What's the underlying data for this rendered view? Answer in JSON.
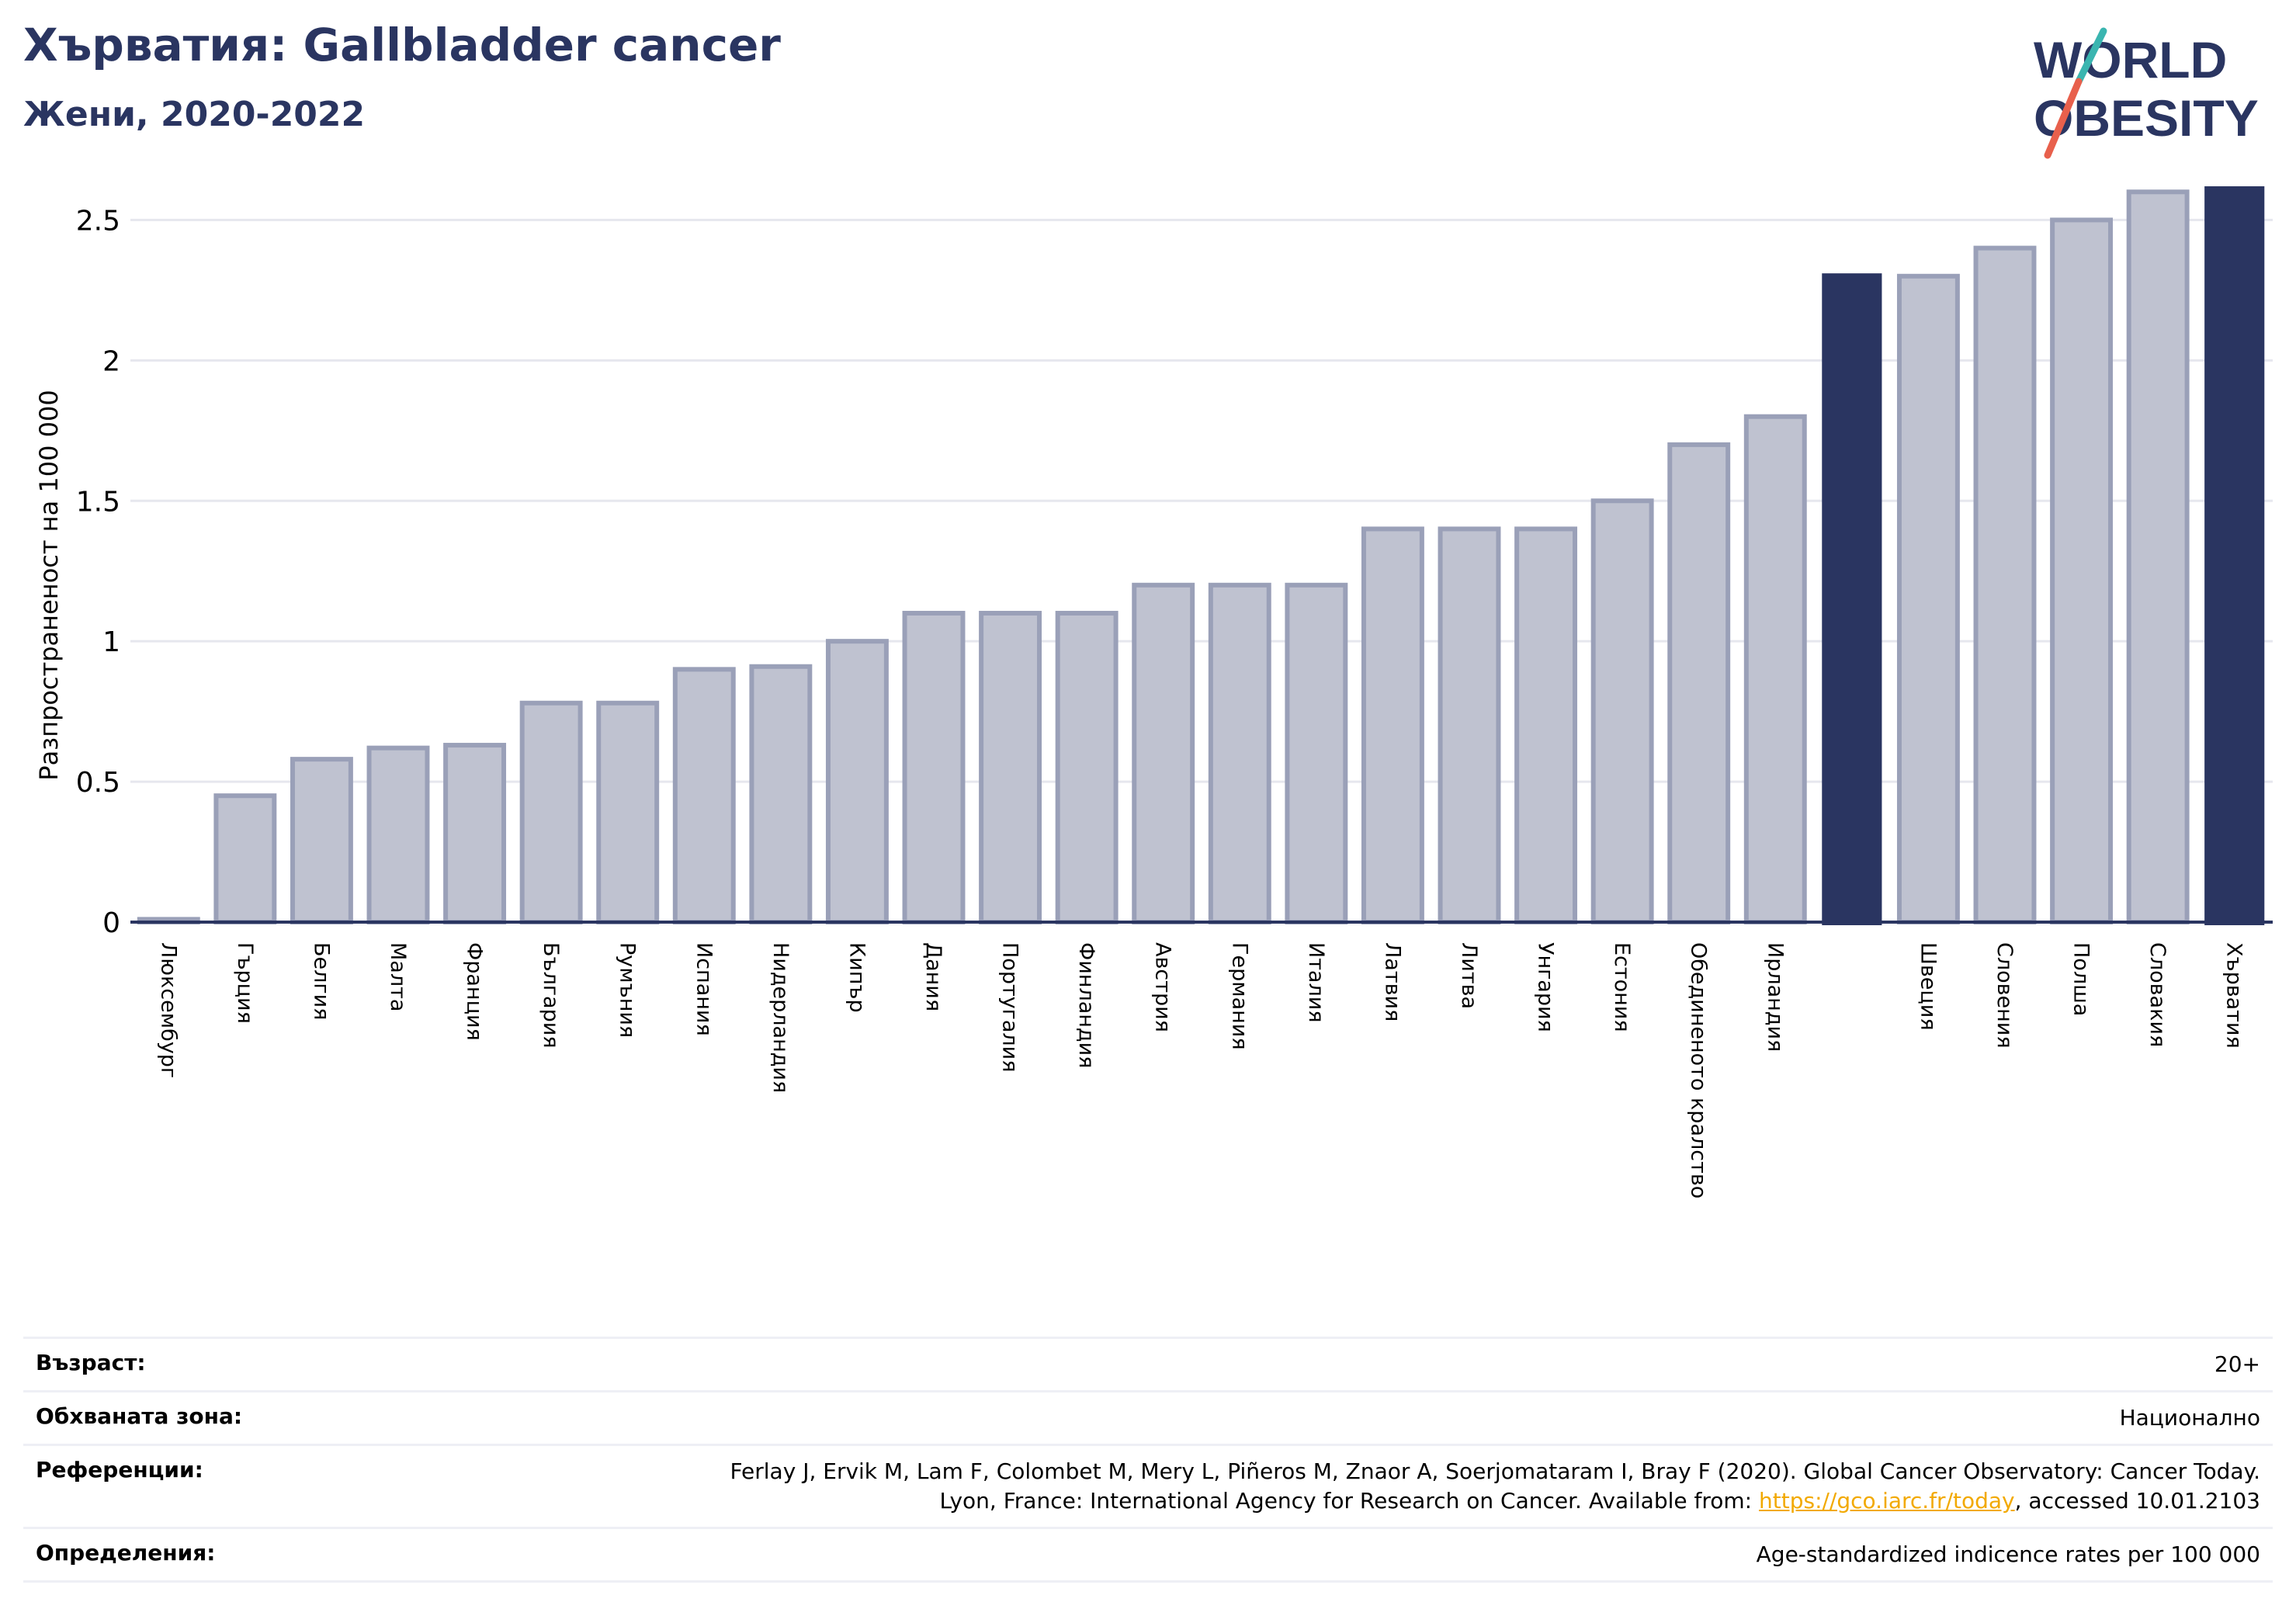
{
  "header": {
    "title": "Хърватия: Gallbladder cancer",
    "subtitle": "Жени, 2020-2022"
  },
  "logo": {
    "line1": "WORLD",
    "line2": "OBESITY",
    "text_color": "#2a3561",
    "slash_colors": [
      "#3ab5b0",
      "#e8604c"
    ]
  },
  "colors": {
    "bar_fill": "#bfc2d0",
    "bar_edge": "#9aa0b8",
    "highlight": "#2a3561",
    "grid": "#e6e7ee",
    "axis": "#2a3561"
  },
  "chart_data": {
    "type": "bar",
    "title": "Хърватия: Gallbladder cancer",
    "subtitle": "Жени, 2020-2022",
    "ylabel": "Разпространеност  на 100 000",
    "ylim": [
      0,
      2.62
    ],
    "yticks": [
      0,
      0.5,
      1,
      1.5,
      2,
      2.5
    ],
    "ytick_labels": [
      "0",
      "0.5",
      "1",
      "1.5",
      "2",
      "2.5"
    ],
    "grid": true,
    "highlight_color": "#2a3561",
    "categories": [
      "Люксембург",
      "Гърция",
      "Белгия",
      "Малта",
      "Франция",
      "България",
      "Румъния",
      "Испания",
      "Нидерландия",
      "Кипър",
      "Дания",
      "Португалия",
      "Финландия",
      "Австрия",
      "Германия",
      "Италия",
      "Латвия",
      "Литва",
      "Унгария",
      "Естония",
      "Обединеното кралство",
      "Ирландия",
      "",
      "Швеция",
      "Словения",
      "Полша",
      "Словакия",
      "Хърватия"
    ],
    "values": [
      0.01,
      0.45,
      0.58,
      0.62,
      0.63,
      0.78,
      0.78,
      0.9,
      0.91,
      1.0,
      1.1,
      1.1,
      1.1,
      1.2,
      1.2,
      1.2,
      1.4,
      1.4,
      1.4,
      1.5,
      1.7,
      1.8,
      2.31,
      2.3,
      2.4,
      2.5,
      2.6,
      2.62
    ],
    "highlighted": [
      22,
      27
    ]
  },
  "info": {
    "age_label": "Възраст:",
    "age_value": "20+",
    "coverage_label": "Обхваната зона:",
    "coverage_value": "Национално",
    "references_label": "Референции:",
    "references_line1": "Ferlay J, Ervik M, Lam F, Colombet M, Mery L, Piñeros M, Znaor A, Soerjomataram I, Bray F (2020). Global Cancer Observatory: Cancer Today.",
    "references_line2_pre": "Lyon, France: International Agency for Research on Cancer. Available from: ",
    "references_link": "https://gco.iarc.fr/today",
    "references_line2_post": ", accessed 10.01.2103",
    "definitions_label": "Определения:",
    "definitions_value": "Age-standardized indicence rates per 100 000"
  }
}
